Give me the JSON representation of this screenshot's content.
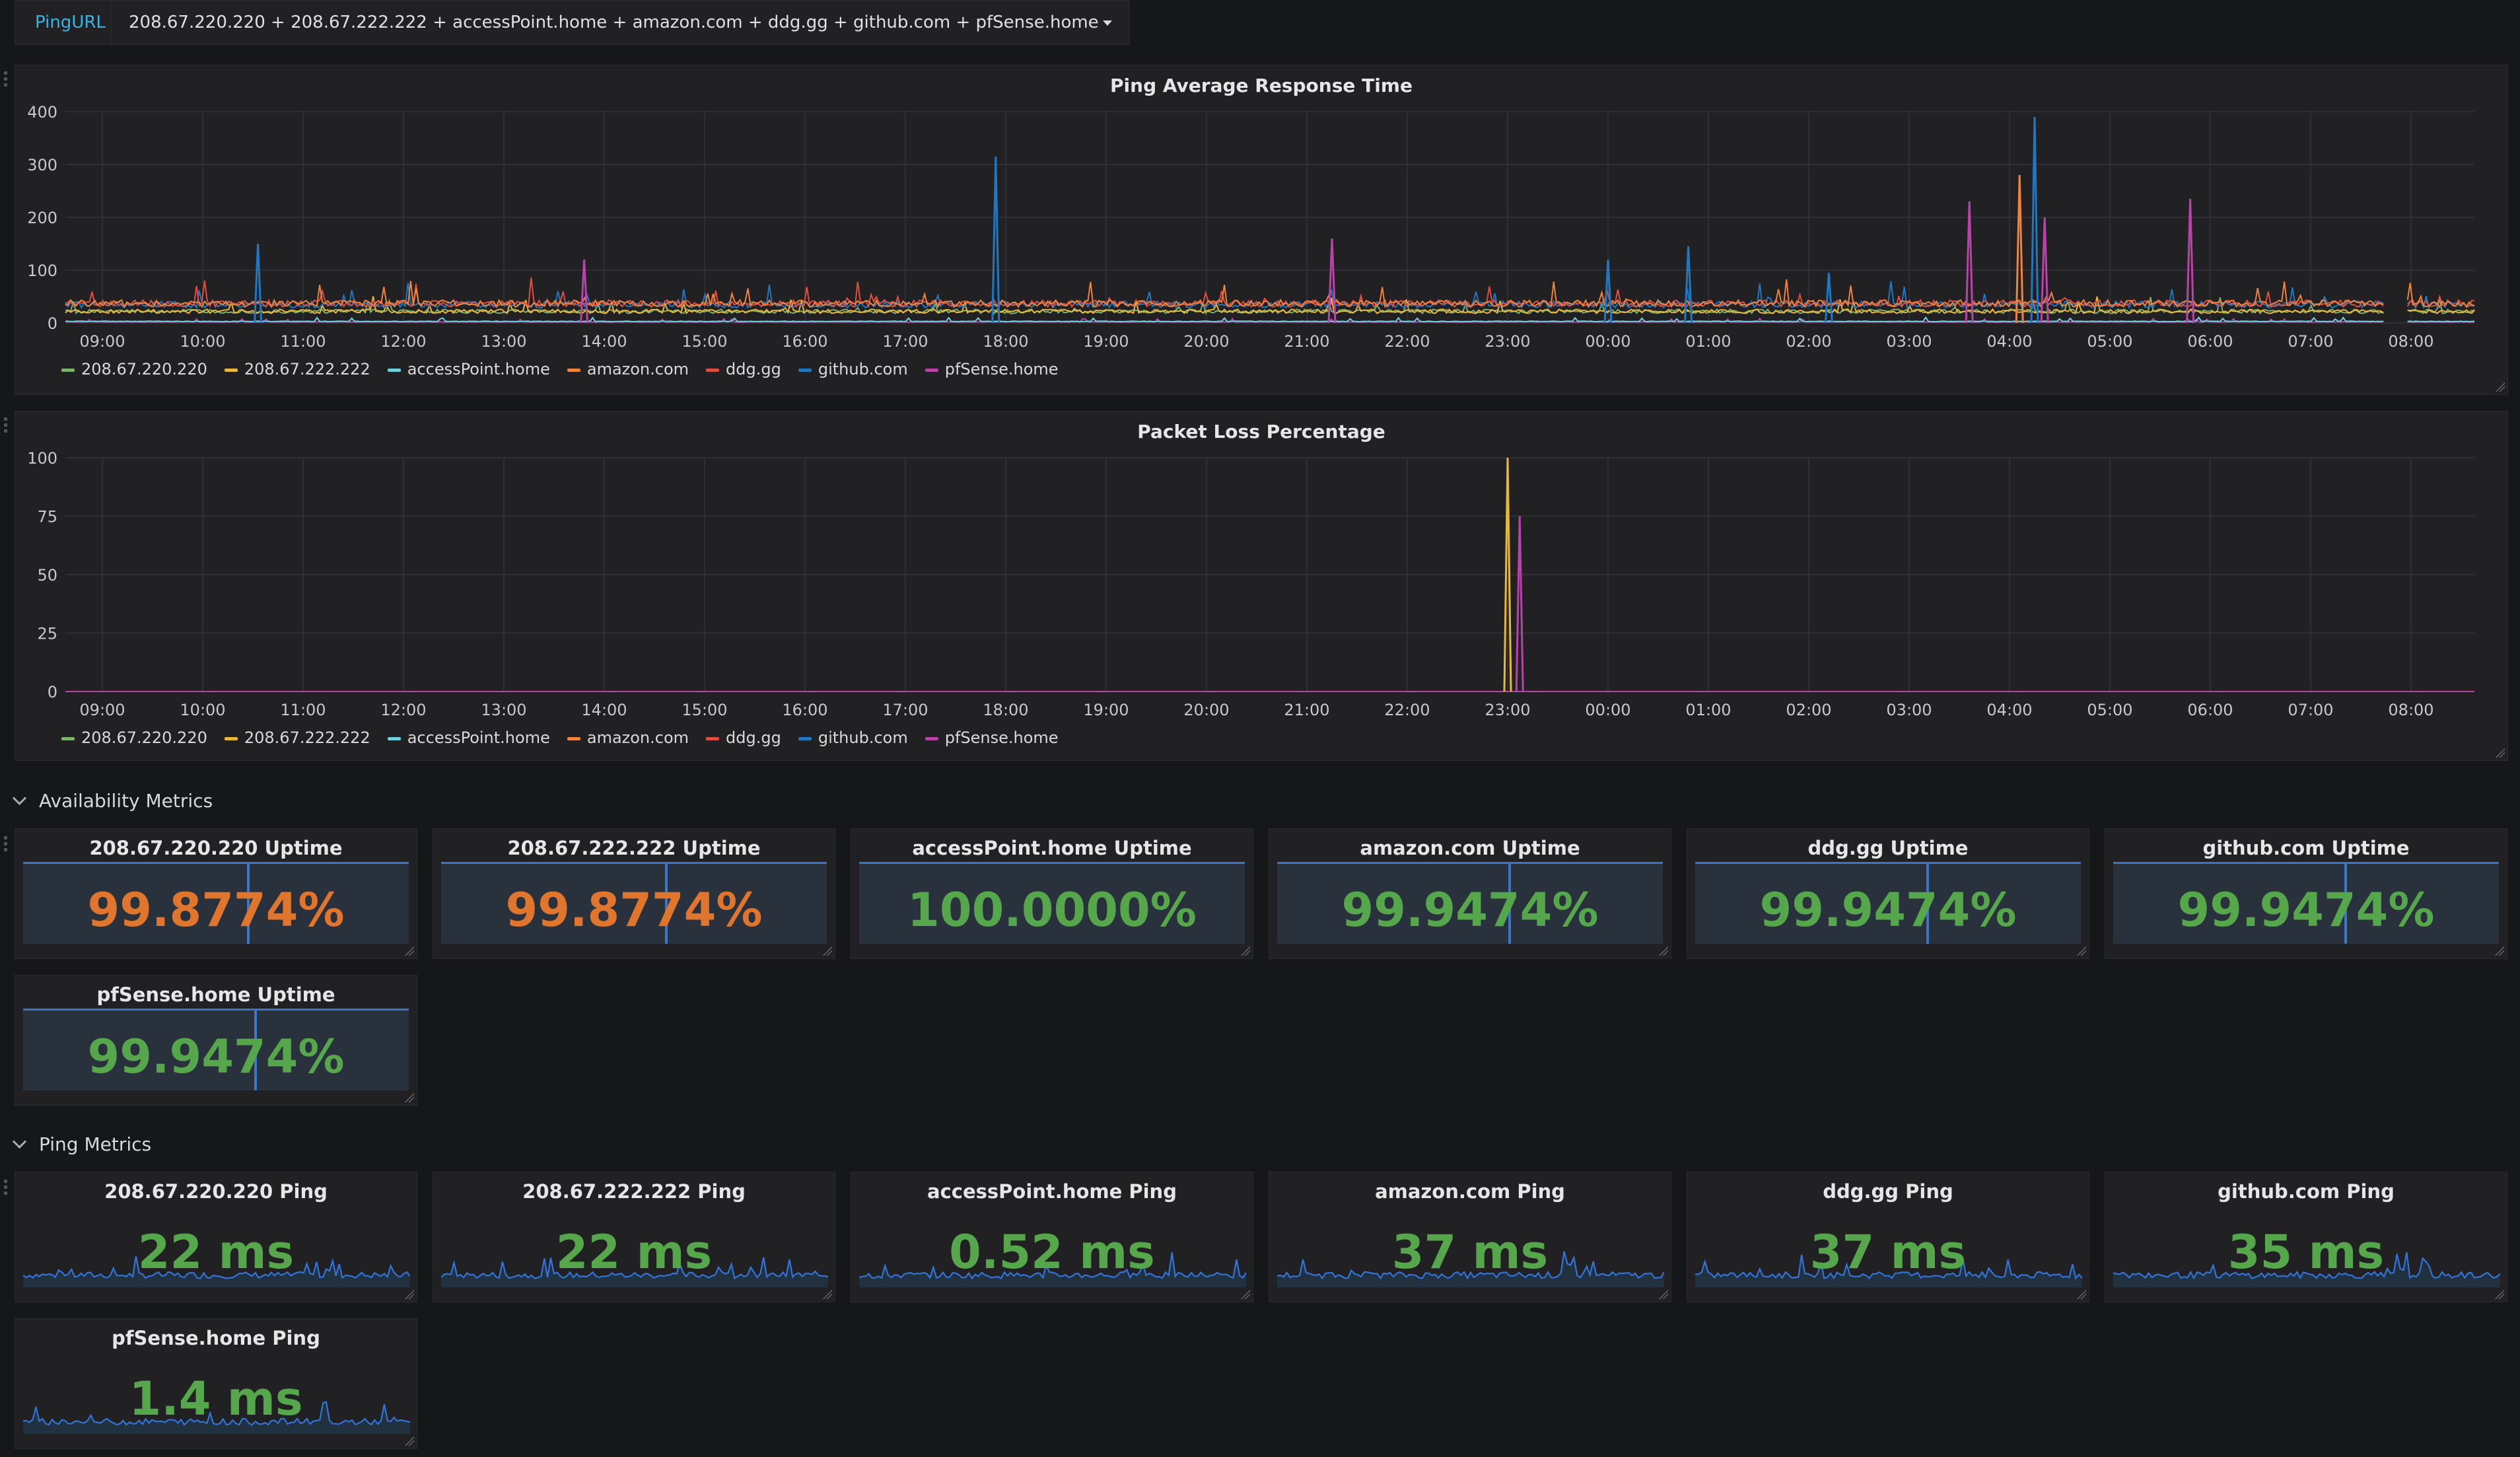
{
  "topbar": {
    "variable_label": "PingURL",
    "variable_value": "208.67.220.220 + 208.67.222.222 + accessPoint.home + amazon.com + ddg.gg + github.com + pfSense.home"
  },
  "series_colors": {
    "208.67.220.220": "#7eb26d",
    "208.67.222.222": "#eab839",
    "accessPoint.home": "#6ed0e0",
    "amazon.com": "#ef843c",
    "ddg.gg": "#e24d42",
    "github.com": "#1f78c1",
    "pfSense.home": "#ba43a9"
  },
  "legend": [
    "208.67.220.220",
    "208.67.222.222",
    "accessPoint.home",
    "amazon.com",
    "ddg.gg",
    "github.com",
    "pfSense.home"
  ],
  "chart_data": [
    {
      "type": "line",
      "title": "Ping Average Response Time",
      "x": [
        "09:00",
        "10:00",
        "11:00",
        "12:00",
        "13:00",
        "14:00",
        "15:00",
        "16:00",
        "17:00",
        "18:00",
        "19:00",
        "20:00",
        "21:00",
        "22:00",
        "23:00",
        "00:00",
        "01:00",
        "02:00",
        "03:00",
        "04:00",
        "05:00",
        "06:00",
        "07:00",
        "08:00"
      ],
      "ylim": [
        0,
        400
      ],
      "yticks": [
        "0",
        "100",
        "200",
        "300",
        "400"
      ],
      "baseline_levels": {
        "208.67.220.220": 22,
        "208.67.222.222": 22,
        "accessPoint.home": 3,
        "amazon.com": 37,
        "ddg.gg": 37,
        "github.com": 35,
        "pfSense.home": 2
      },
      "spikes": [
        {
          "series": "github.com",
          "hour": 1.55,
          "value": 150
        },
        {
          "series": "pfSense.home",
          "hour": 4.8,
          "value": 120
        },
        {
          "series": "github.com",
          "hour": 8.9,
          "value": 315
        },
        {
          "series": "pfSense.home",
          "hour": 12.25,
          "value": 160
        },
        {
          "series": "github.com",
          "hour": 15.0,
          "value": 120
        },
        {
          "series": "github.com",
          "hour": 15.8,
          "value": 145
        },
        {
          "series": "pfSense.home",
          "hour": 18.6,
          "value": 230
        },
        {
          "series": "amazon.com",
          "hour": 19.1,
          "value": 280
        },
        {
          "series": "github.com",
          "hour": 19.25,
          "value": 390
        },
        {
          "series": "pfSense.home",
          "hour": 19.35,
          "value": 200
        },
        {
          "series": "pfSense.home",
          "hour": 20.8,
          "value": 235
        },
        {
          "series": "github.com",
          "hour": 17.2,
          "value": 95
        }
      ],
      "legend_placement": "bottom-left",
      "grid": true
    },
    {
      "type": "line",
      "title": "Packet Loss Percentage",
      "x": [
        "09:00",
        "10:00",
        "11:00",
        "12:00",
        "13:00",
        "14:00",
        "15:00",
        "16:00",
        "17:00",
        "18:00",
        "19:00",
        "20:00",
        "21:00",
        "22:00",
        "23:00",
        "00:00",
        "01:00",
        "02:00",
        "03:00",
        "04:00",
        "05:00",
        "06:00",
        "07:00",
        "08:00"
      ],
      "ylim": [
        0,
        100
      ],
      "yticks": [
        "0",
        "25",
        "50",
        "75",
        "100"
      ],
      "spikes": [
        {
          "series": "208.67.222.222",
          "hour": 14.0,
          "value": 100
        },
        {
          "series": "pfSense.home",
          "hour": 14.12,
          "value": 75
        }
      ],
      "legend_placement": "bottom-left",
      "grid": true
    }
  ],
  "availability": {
    "row_title": "Availability Metrics",
    "panels": [
      {
        "title": "208.67.220.220 Uptime",
        "value": "99.8774%",
        "color": "#e0752d",
        "marker": 0.58
      },
      {
        "title": "208.67.222.222 Uptime",
        "value": "99.8774%",
        "color": "#e0752d",
        "marker": 0.58
      },
      {
        "title": "accessPoint.home Uptime",
        "value": "100.0000%",
        "color": "#56a64b",
        "marker": null
      },
      {
        "title": "amazon.com Uptime",
        "value": "99.9474%",
        "color": "#56a64b",
        "marker": 0.6
      },
      {
        "title": "ddg.gg Uptime",
        "value": "99.9474%",
        "color": "#56a64b",
        "marker": 0.6
      },
      {
        "title": "github.com Uptime",
        "value": "99.9474%",
        "color": "#56a64b",
        "marker": 0.6
      },
      {
        "title": "pfSense.home Uptime",
        "value": "99.9474%",
        "color": "#56a64b",
        "marker": 0.6
      }
    ]
  },
  "ping": {
    "row_title": "Ping Metrics",
    "panels": [
      {
        "title": "208.67.220.220 Ping",
        "value": "22 ms",
        "color": "#56a64b"
      },
      {
        "title": "208.67.222.222 Ping",
        "value": "22 ms",
        "color": "#56a64b"
      },
      {
        "title": "accessPoint.home Ping",
        "value": "0.52 ms",
        "color": "#56a64b"
      },
      {
        "title": "amazon.com Ping",
        "value": "37 ms",
        "color": "#56a64b"
      },
      {
        "title": "ddg.gg Ping",
        "value": "37 ms",
        "color": "#56a64b"
      },
      {
        "title": "github.com Ping",
        "value": "35 ms",
        "color": "#56a64b"
      },
      {
        "title": "pfSense.home Ping",
        "value": "1.4 ms",
        "color": "#56a64b"
      }
    ]
  }
}
